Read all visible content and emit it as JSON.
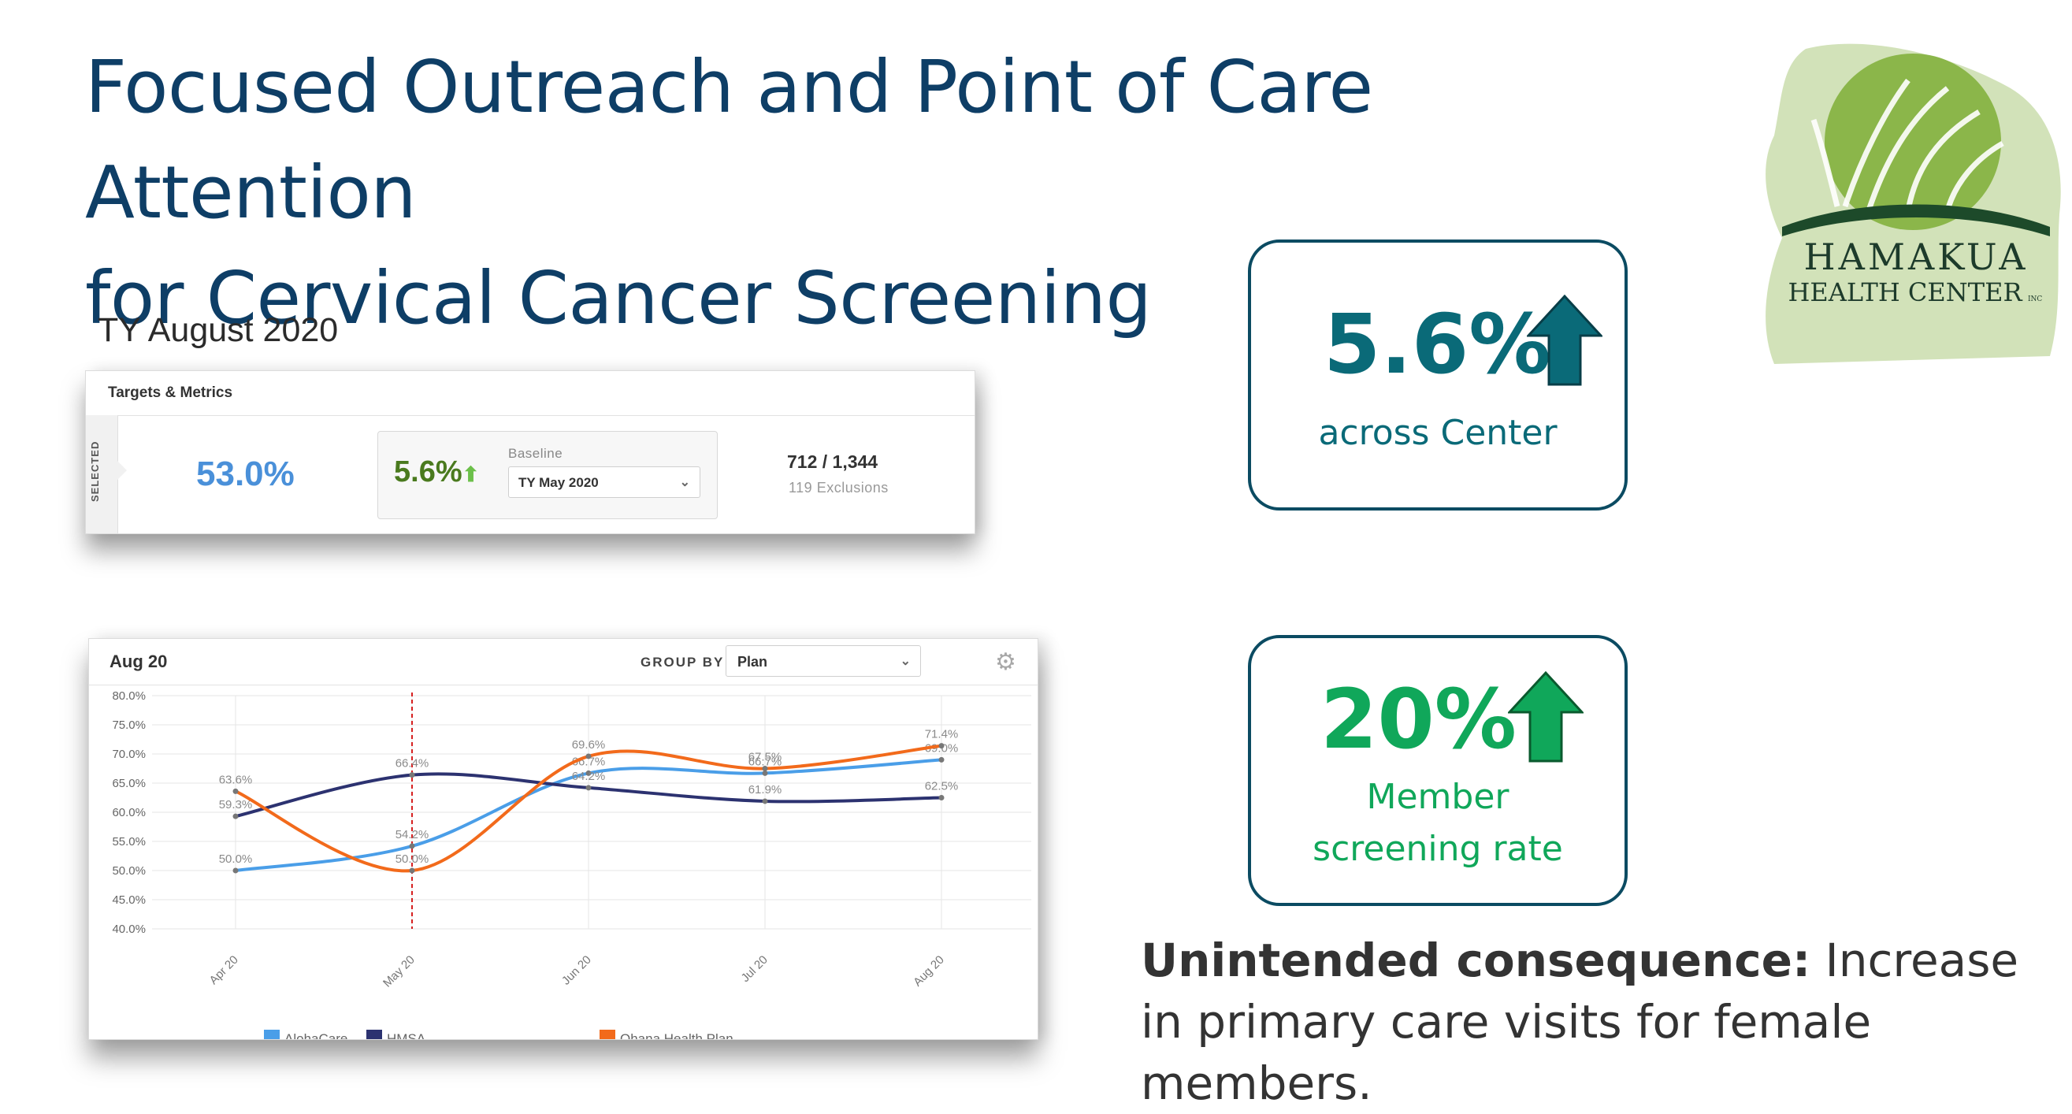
{
  "title": {
    "line1": "Focused Outreach and Point of Care Attention",
    "line2": "for Cervical Cancer Screening"
  },
  "logo": {
    "name": "HAMAKUA",
    "sub": "HEALTH CENTER",
    "suffix": "INC"
  },
  "period_label": "TY August 2020",
  "metrics_card": {
    "header": "Targets & Metrics",
    "side_label": "SELECTED",
    "rate": "53.0%",
    "change": "5.6%",
    "change_icon": "arrow-up-icon",
    "baseline_label": "Baseline",
    "baseline_selected": "TY May 2020",
    "count": "712 / 1,344",
    "exclusions": "119 Exclusions"
  },
  "chart_card": {
    "period": "Aug 20",
    "group_by_label": "GROUP BY",
    "group_by_selected": "Plan"
  },
  "chart_data": {
    "type": "line",
    "categories": [
      "Apr 20",
      "May 20",
      "Jun 20",
      "Jul 20",
      "Aug 20"
    ],
    "ylim": [
      40,
      80
    ],
    "yticks": [
      "40.0%",
      "45.0%",
      "50.0%",
      "55.0%",
      "60.0%",
      "65.0%",
      "70.0%",
      "75.0%",
      "80.0%"
    ],
    "grid": true,
    "legend_position": "bottom",
    "marker_category": "May 20",
    "series": [
      {
        "name": "AlohaCare",
        "color": "#4a9ee8",
        "values": [
          50.0,
          54.2,
          66.7,
          66.7,
          69.0
        ],
        "labels": [
          "50.0%",
          "54.2%",
          "66.7%",
          "66.7%",
          "69.0%"
        ]
      },
      {
        "name": "HMSA",
        "color": "#2c3270",
        "values": [
          59.3,
          66.4,
          64.2,
          61.9,
          62.5
        ],
        "labels": [
          "59.3%",
          "66.4%",
          "64.2%",
          "61.9%",
          "62.5%"
        ]
      },
      {
        "name": "Ohana Health Plan",
        "color": "#f26a1b",
        "values": [
          63.6,
          50.0,
          69.6,
          67.5,
          71.4
        ],
        "labels": [
          "63.6%",
          "50.0%",
          "69.6%",
          "67.5%",
          "71.4%"
        ]
      }
    ]
  },
  "stat_center": {
    "value": "5.6%",
    "desc": "across Center",
    "color": "#0a6a78",
    "icon": "arrow-up-icon"
  },
  "stat_member": {
    "value": "20%",
    "desc_line1": "Member",
    "desc_line2": "screening rate",
    "color": "#10a75a",
    "icon": "arrow-up-icon"
  },
  "consequence": {
    "bold": "Unintended consequence:",
    "rest": "Increase in primary care visits for female members."
  }
}
